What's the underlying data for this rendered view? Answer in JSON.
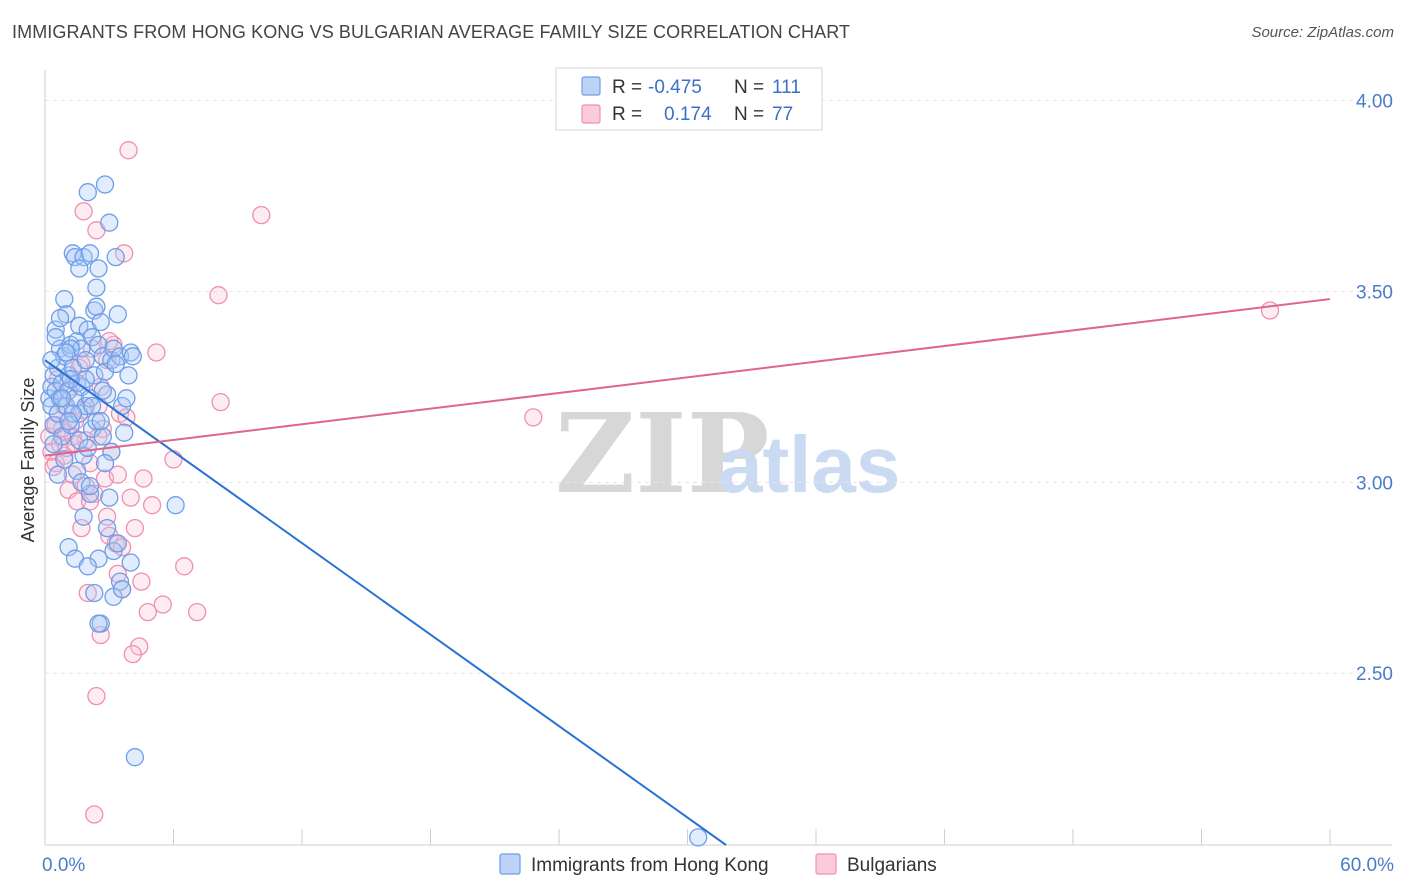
{
  "title": "IMMIGRANTS FROM HONG KONG VS BULGARIAN AVERAGE FAMILY SIZE CORRELATION CHART",
  "source": "Source: ZipAtlas.com",
  "watermark": {
    "zip": "ZIP",
    "atlas": "atlas"
  },
  "colors": {
    "blue": "#6f9ee8",
    "blue_line": "#2a72d6",
    "pink": "#f08fb0",
    "pink_line": "#e0648c",
    "axis_text": "#4a7cc9"
  },
  "legend": {
    "r_label": "R =",
    "n_label": "N =",
    "blue_r": "-0.475",
    "blue_n": "111",
    "pink_r": "0.174",
    "pink_n": "77"
  },
  "bottom_legend": {
    "blue": "Immigrants from Hong Kong",
    "pink": "Bulgarians"
  },
  "chart_data": {
    "type": "scatter",
    "title": "IMMIGRANTS FROM HONG KONG VS BULGARIAN AVERAGE FAMILY SIZE CORRELATION CHART",
    "xlabel": "",
    "ylabel": "Average Family Size",
    "xlim": [
      0,
      60
    ],
    "ylim": [
      2.05,
      4.08
    ],
    "x_tick_labels": [
      "0.0%",
      "60.0%"
    ],
    "y_ticks": [
      2.5,
      3.0,
      3.5,
      4.0
    ],
    "y_tick_labels": [
      "2.50",
      "3.00",
      "3.50",
      "4.00"
    ],
    "series": [
      {
        "name": "Immigrants from Hong Kong",
        "color": "#6f9ee8",
        "trend": {
          "x": [
            0,
            31.8
          ],
          "y": [
            3.32,
            2.05
          ]
        },
        "points": [
          [
            0.2,
            3.22
          ],
          [
            0.3,
            3.25
          ],
          [
            0.3,
            3.2
          ],
          [
            0.4,
            3.28
          ],
          [
            0.4,
            3.15
          ],
          [
            0.5,
            3.24
          ],
          [
            0.5,
            3.4
          ],
          [
            0.6,
            3.3
          ],
          [
            0.6,
            3.18
          ],
          [
            0.7,
            3.22
          ],
          [
            0.7,
            3.35
          ],
          [
            0.8,
            3.26
          ],
          [
            0.8,
            3.12
          ],
          [
            0.9,
            3.48
          ],
          [
            0.9,
            3.33
          ],
          [
            1.0,
            3.44
          ],
          [
            1.0,
            3.2
          ],
          [
            1.1,
            3.28
          ],
          [
            1.1,
            3.24
          ],
          [
            1.2,
            3.36
          ],
          [
            1.2,
            3.15
          ],
          [
            1.3,
            3.3
          ],
          [
            1.3,
            3.6
          ],
          [
            1.4,
            3.59
          ],
          [
            1.4,
            3.22
          ],
          [
            1.5,
            3.37
          ],
          [
            1.5,
            3.26
          ],
          [
            1.6,
            3.41
          ],
          [
            1.6,
            3.18
          ],
          [
            1.7,
            3.35
          ],
          [
            1.7,
            3.25
          ],
          [
            1.8,
            3.59
          ],
          [
            1.8,
            3.07
          ],
          [
            1.9,
            3.32
          ],
          [
            1.9,
            3.2
          ],
          [
            2.0,
            3.76
          ],
          [
            2.0,
            3.4
          ],
          [
            2.1,
            3.6
          ],
          [
            2.1,
            3.22
          ],
          [
            2.2,
            3.38
          ],
          [
            2.2,
            3.14
          ],
          [
            2.3,
            3.28
          ],
          [
            2.3,
            3.45
          ],
          [
            2.4,
            3.51
          ],
          [
            2.4,
            3.16
          ],
          [
            2.5,
            3.56
          ],
          [
            2.5,
            3.36
          ],
          [
            2.6,
            3.42
          ],
          [
            2.6,
            2.63
          ],
          [
            2.7,
            3.33
          ],
          [
            2.7,
            3.12
          ],
          [
            2.8,
            3.29
          ],
          [
            2.8,
            3.78
          ],
          [
            2.9,
            3.23
          ],
          [
            3.0,
            3.68
          ],
          [
            3.1,
            3.32
          ],
          [
            3.1,
            3.08
          ],
          [
            3.2,
            3.35
          ],
          [
            3.2,
            2.7
          ],
          [
            3.3,
            3.59
          ],
          [
            3.4,
            3.44
          ],
          [
            3.5,
            3.33
          ],
          [
            3.6,
            3.2
          ],
          [
            3.7,
            3.13
          ],
          [
            3.8,
            3.22
          ],
          [
            4.0,
            3.34
          ],
          [
            4.1,
            3.33
          ],
          [
            0.3,
            3.32
          ],
          [
            0.6,
            3.02
          ],
          [
            1.1,
            2.83
          ],
          [
            1.2,
            3.35
          ],
          [
            1.5,
            3.03
          ],
          [
            1.8,
            2.91
          ],
          [
            2.1,
            2.97
          ],
          [
            2.3,
            2.71
          ],
          [
            2.5,
            2.8
          ],
          [
            2.6,
            3.16
          ],
          [
            2.9,
            2.88
          ],
          [
            3.0,
            2.96
          ],
          [
            3.2,
            2.82
          ],
          [
            3.4,
            2.84
          ],
          [
            3.5,
            2.74
          ],
          [
            3.6,
            2.72
          ],
          [
            4.0,
            2.79
          ],
          [
            4.2,
            2.28
          ],
          [
            2.5,
            2.63
          ],
          [
            1.4,
            2.8
          ],
          [
            1.6,
            3.56
          ],
          [
            2.0,
            2.78
          ],
          [
            6.1,
            2.94
          ],
          [
            0.5,
            3.38
          ],
          [
            0.8,
            3.22
          ],
          [
            1.0,
            3.34
          ],
          [
            1.9,
            3.27
          ],
          [
            2.2,
            3.2
          ],
          [
            0.4,
            3.1
          ],
          [
            0.9,
            3.06
          ],
          [
            1.3,
            3.18
          ],
          [
            1.6,
            3.11
          ],
          [
            2.4,
            3.46
          ],
          [
            0.7,
            3.43
          ],
          [
            1.2,
            3.27
          ],
          [
            2.0,
            3.09
          ],
          [
            2.7,
            3.24
          ],
          [
            3.3,
            3.31
          ],
          [
            1.1,
            3.16
          ],
          [
            1.7,
            3.0
          ],
          [
            2.1,
            2.99
          ],
          [
            2.8,
            3.05
          ],
          [
            3.9,
            3.28
          ],
          [
            30.5,
            2.07
          ]
        ]
      },
      {
        "name": "Bulgarians",
        "color": "#f08fb0",
        "trend": {
          "x": [
            0,
            60
          ],
          "y": [
            3.07,
            3.48
          ]
        },
        "points": [
          [
            0.2,
            3.12
          ],
          [
            0.3,
            3.08
          ],
          [
            0.4,
            3.15
          ],
          [
            0.5,
            3.05
          ],
          [
            0.6,
            3.18
          ],
          [
            0.7,
            3.1
          ],
          [
            0.8,
            3.22
          ],
          [
            0.9,
            3.07
          ],
          [
            1.0,
            3.13
          ],
          [
            1.1,
            2.98
          ],
          [
            1.2,
            3.25
          ],
          [
            1.3,
            3.02
          ],
          [
            1.4,
            3.16
          ],
          [
            1.5,
            2.95
          ],
          [
            1.6,
            3.3
          ],
          [
            1.7,
            2.88
          ],
          [
            1.8,
            3.19
          ],
          [
            1.9,
            3.11
          ],
          [
            2.0,
            2.71
          ],
          [
            2.1,
            3.05
          ],
          [
            2.2,
            3.35
          ],
          [
            2.3,
            2.97
          ],
          [
            2.4,
            3.66
          ],
          [
            2.5,
            3.2
          ],
          [
            2.6,
            2.6
          ],
          [
            2.7,
            3.14
          ],
          [
            2.8,
            3.01
          ],
          [
            2.9,
            3.32
          ],
          [
            3.0,
            2.86
          ],
          [
            3.1,
            3.08
          ],
          [
            3.2,
            3.36
          ],
          [
            3.3,
            2.84
          ],
          [
            3.4,
            2.76
          ],
          [
            3.5,
            3.18
          ],
          [
            3.6,
            2.72
          ],
          [
            3.7,
            3.6
          ],
          [
            3.8,
            3.17
          ],
          [
            3.9,
            3.87
          ],
          [
            4.0,
            2.96
          ],
          [
            4.2,
            2.88
          ],
          [
            4.4,
            2.57
          ],
          [
            4.6,
            3.01
          ],
          [
            4.8,
            2.66
          ],
          [
            5.0,
            2.94
          ],
          [
            5.5,
            2.68
          ],
          [
            6.0,
            3.06
          ],
          [
            6.5,
            2.78
          ],
          [
            7.1,
            2.66
          ],
          [
            8.1,
            3.49
          ],
          [
            8.2,
            3.21
          ],
          [
            10.1,
            3.7
          ],
          [
            22.8,
            3.17
          ],
          [
            57.2,
            3.45
          ],
          [
            1.8,
            3.71
          ],
          [
            1.0,
            3.09
          ],
          [
            0.6,
            3.27
          ],
          [
            0.9,
            3.2
          ],
          [
            1.3,
            3.12
          ],
          [
            1.7,
            3.31
          ],
          [
            2.1,
            2.95
          ],
          [
            2.6,
            3.25
          ],
          [
            3.4,
            3.02
          ],
          [
            0.4,
            3.04
          ],
          [
            0.8,
            3.14
          ],
          [
            1.5,
            3.26
          ],
          [
            2.9,
            2.91
          ],
          [
            3.6,
            2.83
          ],
          [
            4.1,
            2.55
          ],
          [
            2.3,
            2.13
          ],
          [
            2.4,
            2.44
          ],
          [
            1.4,
            3.1
          ],
          [
            1.9,
            2.99
          ],
          [
            2.5,
            3.12
          ],
          [
            3.0,
            3.37
          ],
          [
            4.5,
            2.74
          ],
          [
            5.2,
            3.34
          ],
          [
            0.5,
            3.15
          ]
        ]
      }
    ]
  }
}
